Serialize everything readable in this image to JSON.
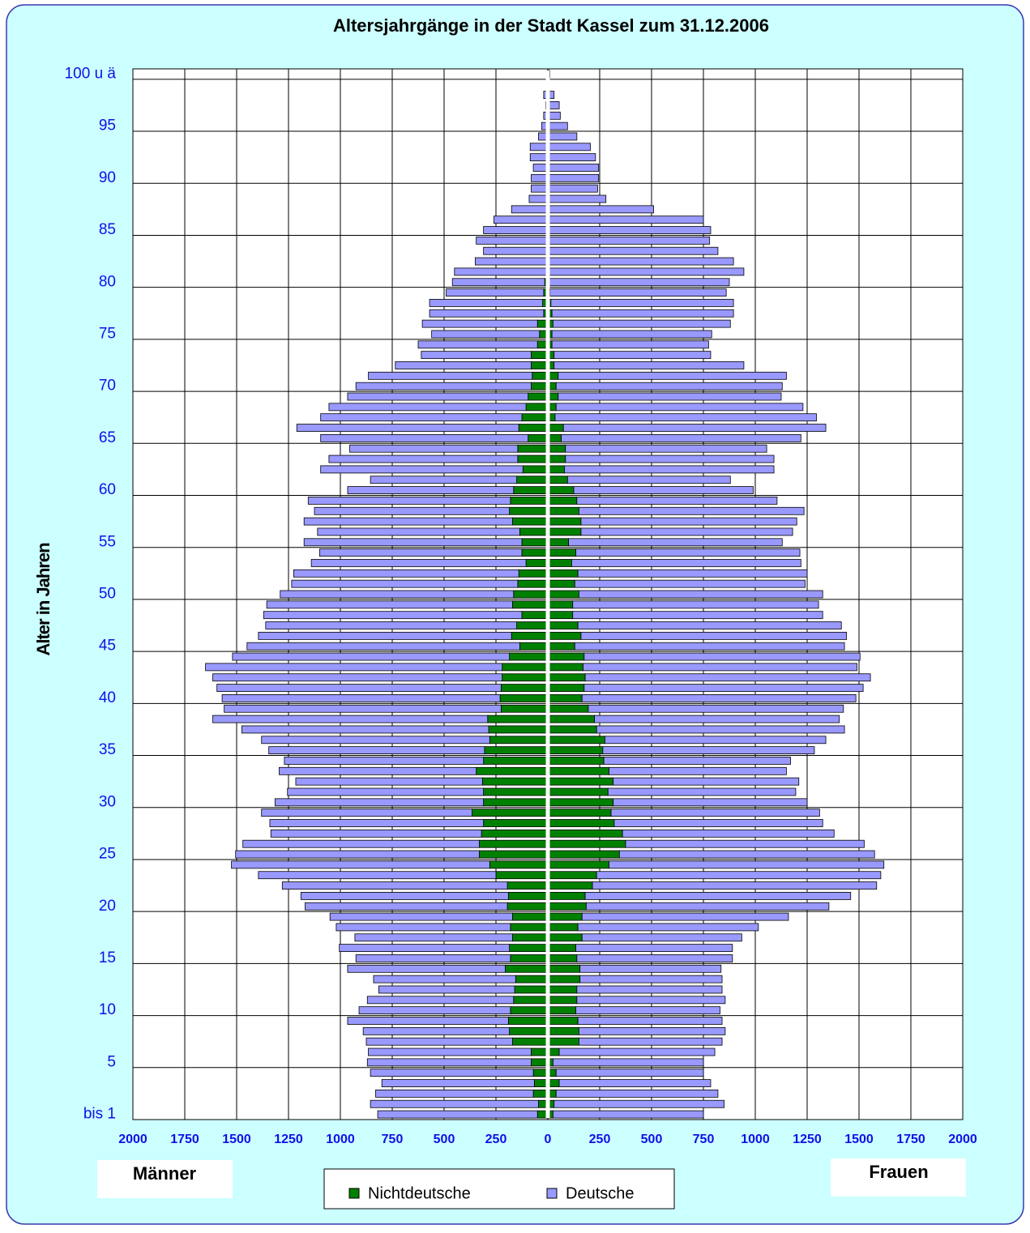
{
  "chart_data": {
    "type": "pyramid",
    "title": "Altersjahrgänge in der Stadt Kassel zum 31.12.2006",
    "y_label": "Alter in Jahren",
    "categories": [
      "bis 1",
      null,
      null,
      null,
      null,
      "5",
      null,
      null,
      null,
      null,
      "10",
      null,
      null,
      null,
      null,
      "15",
      null,
      null,
      null,
      null,
      "20",
      null,
      null,
      null,
      null,
      "25",
      null,
      null,
      null,
      null,
      "30",
      null,
      null,
      null,
      null,
      "35",
      null,
      null,
      null,
      null,
      "40",
      null,
      null,
      null,
      null,
      "45",
      null,
      null,
      null,
      null,
      "50",
      null,
      null,
      null,
      null,
      "55",
      null,
      null,
      null,
      null,
      "60",
      null,
      null,
      null,
      null,
      "65",
      null,
      null,
      null,
      null,
      "70",
      null,
      null,
      null,
      null,
      "75",
      null,
      null,
      null,
      null,
      "80",
      null,
      null,
      null,
      null,
      "85",
      null,
      null,
      null,
      null,
      "90",
      null,
      null,
      null,
      null,
      "95",
      null,
      null,
      null,
      null,
      "100 u ä"
    ],
    "left": {
      "label": "Männer",
      "xlim": [
        0,
        2000
      ],
      "xticks": [
        250,
        500,
        750,
        1000,
        1250,
        1500,
        1750,
        2000
      ]
    },
    "right": {
      "label": "Frauen",
      "xlim": [
        0,
        2000
      ],
      "xticks": [
        0,
        250,
        500,
        750,
        1000,
        1250,
        1500,
        1750,
        2000
      ]
    },
    "grid": true,
    "series": [
      {
        "name": "Nichtdeutsche",
        "color": "#008000",
        "left": [
          50,
          45,
          70,
          65,
          70,
          80,
          80,
          170,
          185,
          190,
          180,
          165,
          160,
          155,
          205,
          180,
          185,
          170,
          180,
          170,
          195,
          190,
          195,
          250,
          280,
          330,
          330,
          320,
          310,
          365,
          310,
          310,
          315,
          345,
          310,
          305,
          280,
          285,
          290,
          225,
          230,
          225,
          220,
          220,
          185,
          135,
          175,
          150,
          125,
          170,
          165,
          145,
          140,
          105,
          125,
          125,
          135,
          170,
          185,
          180,
          165,
          150,
          120,
          145,
          145,
          95,
          140,
          125,
          105,
          95,
          80,
          75,
          80,
          80,
          50,
          40,
          50,
          20,
          25,
          20,
          15,
          5,
          5,
          5,
          5,
          5,
          5,
          5,
          0,
          0,
          0,
          0,
          0,
          0,
          0,
          0,
          0,
          0,
          0,
          0,
          0
        ],
        "right": [
          25,
          30,
          40,
          55,
          40,
          25,
          55,
          150,
          150,
          145,
          135,
          140,
          140,
          155,
          155,
          140,
          135,
          165,
          145,
          165,
          185,
          180,
          215,
          235,
          295,
          345,
          375,
          360,
          320,
          305,
          315,
          290,
          315,
          295,
          270,
          265,
          275,
          235,
          225,
          195,
          165,
          175,
          180,
          170,
          175,
          130,
          160,
          145,
          120,
          120,
          150,
          130,
          145,
          115,
          135,
          100,
          160,
          160,
          150,
          140,
          125,
          95,
          80,
          85,
          85,
          65,
          75,
          35,
          40,
          50,
          40,
          50,
          30,
          30,
          20,
          20,
          25,
          20,
          15,
          10,
          5,
          5,
          5,
          5,
          5,
          5,
          5,
          5,
          0,
          0,
          0,
          0,
          0,
          0,
          0,
          0,
          0,
          0,
          0,
          0,
          0
        ]
      },
      {
        "name": "Deutsche",
        "color": "#9999ff",
        "left": [
          770,
          810,
          760,
          735,
          785,
          790,
          785,
          705,
          705,
          775,
          730,
          705,
          655,
          685,
          760,
          745,
          820,
          760,
          840,
          880,
          975,
          1000,
          1085,
          1145,
          1245,
          1175,
          1140,
          1015,
          1030,
          1015,
          1005,
          945,
          900,
          950,
          960,
          1040,
          1100,
          1190,
          1325,
          1335,
          1340,
          1370,
          1395,
          1430,
          1335,
          1315,
          1220,
          1210,
          1245,
          1185,
          1125,
          1090,
          1085,
          1035,
          975,
          1050,
          975,
          1005,
          940,
          975,
          800,
          705,
          975,
          910,
          810,
          1000,
          1070,
          970,
          950,
          870,
          845,
          790,
          655,
          530,
          575,
          520,
          555,
          550,
          545,
          470,
          445,
          445,
          345,
          305,
          340,
          305,
          255,
          170,
          90,
          80,
          80,
          70,
          85,
          85,
          45,
          30,
          20,
          10,
          20,
          3,
          2
        ],
        "right": [
          725,
          820,
          780,
          730,
          710,
          725,
          750,
          690,
          705,
          695,
          695,
          715,
          700,
          685,
          680,
          750,
          755,
          770,
          870,
          995,
          1170,
          1280,
          1370,
          1370,
          1325,
          1230,
          1150,
          1020,
          1005,
          1005,
          935,
          905,
          895,
          855,
          900,
          1020,
          1065,
          1195,
          1180,
          1230,
          1320,
          1345,
          1375,
          1320,
          1330,
          1300,
          1280,
          1270,
          1205,
          1185,
          1175,
          1110,
          1105,
          1105,
          1080,
          1030,
          1020,
          1040,
          1085,
          965,
          865,
          785,
          1010,
          1005,
          970,
          1155,
          1265,
          1260,
          1190,
          1075,
          1090,
          1100,
          915,
          755,
          755,
          770,
          855,
          875,
          880,
          850,
          870,
          940,
          890,
          815,
          775,
          780,
          745,
          505,
          280,
          240,
          245,
          245,
          230,
          205,
          140,
          95,
          60,
          55,
          30,
          8,
          10
        ]
      }
    ]
  }
}
